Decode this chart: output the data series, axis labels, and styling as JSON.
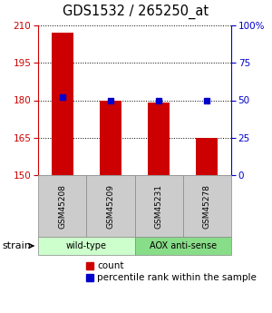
{
  "title": "GDS1532 / 265250_at",
  "samples": [
    "GSM45208",
    "GSM45209",
    "GSM45231",
    "GSM45278"
  ],
  "counts": [
    207,
    180,
    179,
    165
  ],
  "percentiles": [
    52,
    50,
    50,
    50
  ],
  "ylim_left": [
    150,
    210
  ],
  "ylim_right": [
    0,
    100
  ],
  "yticks_left": [
    150,
    165,
    180,
    195,
    210
  ],
  "yticks_right": [
    0,
    25,
    50,
    75,
    100
  ],
  "ytick_labels_right": [
    "0",
    "25",
    "50",
    "75",
    "100%"
  ],
  "bar_color": "#cc0000",
  "dot_color": "#0000cc",
  "bar_bottom": 150,
  "groups": [
    {
      "label": "wild-type",
      "indices": [
        0,
        1
      ],
      "color": "#ccffcc"
    },
    {
      "label": "AOX anti-sense",
      "indices": [
        2,
        3
      ],
      "color": "#88dd88"
    }
  ],
  "strain_label": "strain",
  "legend_count_label": "count",
  "legend_pct_label": "percentile rank within the sample",
  "axis_left_color": "#cc0000",
  "axis_right_color": "#0000cc",
  "bg_color": "#ffffff"
}
